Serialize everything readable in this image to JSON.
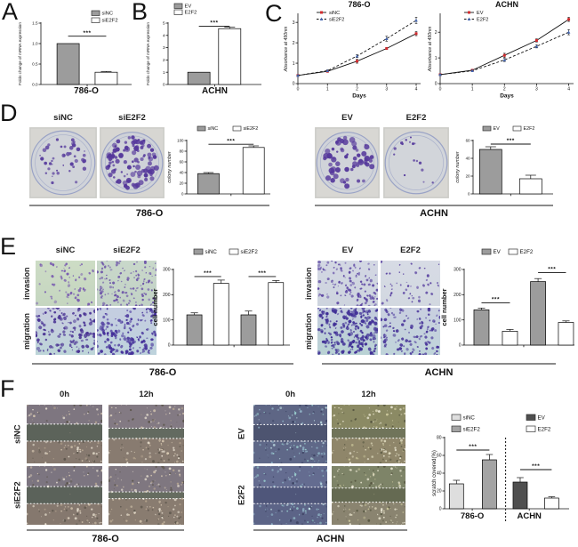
{
  "panels": {
    "A": {
      "letter": "A"
    },
    "B": {
      "letter": "B"
    },
    "C": {
      "letter": "C"
    },
    "D": {
      "letter": "D",
      "left": {
        "cols": [
          "siNC",
          "siE2F2"
        ],
        "cell_line": "786-O"
      },
      "right": {
        "cols": [
          "EV",
          "E2F2"
        ],
        "cell_line": "ACHN"
      }
    },
    "E": {
      "letter": "E",
      "row_labels": [
        "invasion",
        "migration"
      ],
      "left": {
        "cols": [
          "siNC",
          "siE2F2"
        ],
        "cell_line": "786-O"
      },
      "right": {
        "cols": [
          "EV",
          "E2F2"
        ],
        "cell_line": "ACHN"
      }
    },
    "F": {
      "letter": "F",
      "time_labels": [
        "0h",
        "12h"
      ],
      "left": {
        "rows": [
          "siNC",
          "siE2F2"
        ],
        "cell_line": "786-O"
      },
      "mid": {
        "rows": [
          "EV",
          "E2F2"
        ],
        "cell_line": "ACHN"
      }
    }
  },
  "colors": {
    "gray_bar": "#9c9c9c",
    "white_bar": "#ffffff",
    "light_gray_bar": "#dedede",
    "mid_gray_bar": "#a4a4a4",
    "dark_gray_bar": "#4f4f4f",
    "red_marker": "#d12b2e",
    "blue_marker": "#4466b0",
    "colony_purple": "#5a3f9e"
  },
  "chart_data": [
    {
      "id": "A",
      "type": "bar",
      "ylabel": "Folds change of mRNA expression",
      "xlabel": "786-O",
      "ylim": [
        0,
        1.5
      ],
      "yticks": [
        0,
        0.5,
        1,
        1.5
      ],
      "ytick_labels": [
        "0.0",
        "0.5",
        "1.0",
        "1.5"
      ],
      "bars": [
        {
          "label": "siNC",
          "value": 1.0,
          "err": 0,
          "fill": "#9c9c9c",
          "xc": 0.3
        },
        {
          "label": "siE2F2",
          "value": 0.3,
          "err": 0.02,
          "fill": "#ffffff",
          "xc": 0.72
        }
      ],
      "xtick_xc": [
        0.51
      ],
      "sig": [
        {
          "a": 0,
          "b": 1,
          "text": "***",
          "y": 1.18
        }
      ],
      "legend": {
        "items": [
          {
            "label": "siNC",
            "fill": "#9c9c9c"
          },
          {
            "label": "siE2F2",
            "fill": "#ffffff"
          }
        ]
      }
    },
    {
      "id": "B",
      "type": "bar",
      "ylabel": "Folds change of mRNA expression",
      "xlabel": "ACHN",
      "ylim": [
        0,
        5
      ],
      "yticks": [
        0,
        1,
        2,
        3,
        4,
        5
      ],
      "ytick_labels": [
        "0",
        "1",
        "2",
        "3",
        "4",
        "5"
      ],
      "bars": [
        {
          "label": "EV",
          "value": 1.0,
          "err": 0,
          "fill": "#9c9c9c",
          "xc": 0.33
        },
        {
          "label": "E2F2",
          "value": 4.55,
          "err": 0.12,
          "fill": "#ffffff",
          "xc": 0.66
        }
      ],
      "xtick_xc": [
        0.5
      ],
      "sig": [
        {
          "a": 0,
          "b": 1,
          "text": "***",
          "y": 4.75
        }
      ],
      "legend": {
        "items": [
          {
            "label": "EV",
            "fill": "#9c9c9c"
          },
          {
            "label": "E2F2",
            "fill": "#ffffff"
          }
        ]
      }
    },
    {
      "id": "C1",
      "type": "line",
      "title": "786-O",
      "ylabel": "Absorbance at 490nm",
      "xlabel": "Days",
      "xlim": [
        0,
        4.15
      ],
      "ylim": [
        0,
        3.4
      ],
      "xticks": [
        0,
        1,
        2,
        3,
        4
      ],
      "yticks": [
        0,
        1,
        2,
        3
      ],
      "series": [
        {
          "name": "siNC",
          "color": "#d12b2e",
          "dash": false,
          "values": [
            0.4,
            0.6,
            1.1,
            1.72,
            2.45
          ],
          "errs": [
            0.02,
            0.03,
            0.1,
            0.05,
            0.1
          ]
        },
        {
          "name": "siE2F2",
          "color": "#4466b0",
          "dash": true,
          "values": [
            0.4,
            0.63,
            1.35,
            2.2,
            3.1
          ],
          "errs": [
            0.02,
            0.04,
            0.07,
            0.12,
            0.15
          ]
        }
      ]
    },
    {
      "id": "C2",
      "type": "line",
      "title": "ACHN",
      "ylabel": "Absorbance at 490nm",
      "xlabel": "Days",
      "xlim": [
        0,
        4.15
      ],
      "ylim": [
        0,
        2.7
      ],
      "xticks": [
        0,
        1,
        2,
        3,
        4
      ],
      "yticks": [
        0,
        1,
        2
      ],
      "series": [
        {
          "name": "EV",
          "color": "#d12b2e",
          "dash": false,
          "values": [
            0.35,
            0.52,
            1.1,
            1.68,
            2.5
          ],
          "errs": [
            0.02,
            0.03,
            0.08,
            0.06,
            0.08
          ]
        },
        {
          "name": "E2F2",
          "color": "#4466b0",
          "dash": true,
          "values": [
            0.35,
            0.5,
            0.92,
            1.45,
            2.0
          ],
          "errs": [
            0.02,
            0.03,
            0.06,
            0.06,
            0.1
          ]
        }
      ]
    },
    {
      "id": "D1",
      "type": "bar",
      "ylabel": "colony number",
      "ylabel_italic": true,
      "ylim": [
        0,
        100
      ],
      "yticks": [
        0,
        20,
        40,
        60,
        80,
        100
      ],
      "ytick_labels": [
        "0",
        "20",
        "40",
        "60",
        "80",
        "100"
      ],
      "bars": [
        {
          "label": "siNC",
          "value": 38,
          "err": 2,
          "fill": "#9c9c9c",
          "xc": 0.26
        },
        {
          "label": "siE2F2",
          "value": 87,
          "err": 3,
          "fill": "#ffffff",
          "xc": 0.8
        }
      ],
      "xtick_xc": [
        0.53
      ],
      "sig": [
        {
          "a": 0,
          "b": 1,
          "text": "***",
          "y": 93
        }
      ],
      "legend": {
        "items": [
          {
            "label": "siNC",
            "fill": "#9c9c9c"
          },
          {
            "label": "siE2F2",
            "fill": "#ffffff"
          }
        ]
      }
    },
    {
      "id": "D2",
      "type": "bar",
      "ylabel": "colony number",
      "ylabel_italic": true,
      "ylim": [
        0,
        60
      ],
      "yticks": [
        0,
        20,
        40,
        60
      ],
      "ytick_labels": [
        "0",
        "20",
        "40",
        "60"
      ],
      "bars": [
        {
          "label": "EV",
          "value": 50,
          "err": 3,
          "fill": "#9c9c9c",
          "xc": 0.22
        },
        {
          "label": "E2F2",
          "value": 17,
          "err": 4,
          "fill": "#ffffff",
          "xc": 0.72
        }
      ],
      "xtick_xc": [
        0.47
      ],
      "sig": [
        {
          "a": 0,
          "b": 1,
          "text": "***",
          "y": 56
        }
      ],
      "legend": {
        "items": [
          {
            "label": "EV",
            "fill": "#9c9c9c"
          },
          {
            "label": "E2F2",
            "fill": "#ffffff"
          }
        ]
      }
    },
    {
      "id": "E1",
      "type": "bar",
      "ylabel": "cell number",
      "ylabel_bold": true,
      "ylim": [
        0,
        300
      ],
      "yticks": [
        0,
        100,
        200,
        300
      ],
      "ytick_labels": [
        "0",
        "100",
        "200",
        "300"
      ],
      "group_note": "left pair = invasion, right pair = migration",
      "bars": [
        {
          "label": "siNC",
          "value": 120,
          "err": 8,
          "fill": "#9c9c9c",
          "xc": 0.18
        },
        {
          "label": "siE2F2",
          "value": 245,
          "err": 13,
          "fill": "#ffffff",
          "xc": 0.41
        },
        {
          "label": "siNC",
          "value": 120,
          "err": 15,
          "fill": "#9c9c9c",
          "xc": 0.645
        },
        {
          "label": "siE2F2",
          "value": 248,
          "err": 8,
          "fill": "#ffffff",
          "xc": 0.88
        }
      ],
      "xtick_xc": [
        0.52
      ],
      "sig": [
        {
          "a": 0,
          "b": 1,
          "text": "***",
          "y": 272
        },
        {
          "a": 2,
          "b": 3,
          "text": "***",
          "y": 272
        }
      ],
      "legend": {
        "items": [
          {
            "label": "siNC",
            "fill": "#9c9c9c"
          },
          {
            "label": "siE2F2",
            "fill": "#ffffff"
          }
        ]
      }
    },
    {
      "id": "E2",
      "type": "bar",
      "ylabel": "cell number",
      "ylabel_bold": true,
      "ylim": [
        0,
        300
      ],
      "yticks": [
        0,
        100,
        200,
        300
      ],
      "ytick_labels": [
        "0",
        "100",
        "200",
        "300"
      ],
      "group_note": "left pair = invasion, right pair = migration",
      "bars": [
        {
          "label": "EV",
          "value": 140,
          "err": 7,
          "fill": "#9c9c9c",
          "xc": 0.157
        },
        {
          "label": "E2F2",
          "value": 55,
          "err": 7,
          "fill": "#ffffff",
          "xc": 0.415
        },
        {
          "label": "EV",
          "value": 252,
          "err": 12,
          "fill": "#9c9c9c",
          "xc": 0.67
        },
        {
          "label": "E2F2",
          "value": 90,
          "err": 6,
          "fill": "#ffffff",
          "xc": 0.923
        }
      ],
      "xtick_xc": [
        0.54
      ],
      "sig": [
        {
          "a": 0,
          "b": 1,
          "text": "***",
          "y": 168
        },
        {
          "a": 2,
          "b": 3,
          "text": "***",
          "y": 288
        }
      ],
      "legend": {
        "items": [
          {
            "label": "EV",
            "fill": "#9c9c9c"
          },
          {
            "label": "E2F2",
            "fill": "#ffffff"
          }
        ]
      }
    },
    {
      "id": "F",
      "type": "bar",
      "ylabel": "scratch covered(%)",
      "ylim": [
        0,
        80
      ],
      "yticks": [
        0,
        20,
        40,
        60,
        80
      ],
      "ytick_labels": [
        "0",
        "20",
        "40",
        "60",
        "80"
      ],
      "bars": [
        {
          "label": "siNC",
          "value": 28,
          "err": 4,
          "fill": "#dedede",
          "xc": 0.095
        },
        {
          "label": "siE2F2",
          "value": 55,
          "err": 6,
          "fill": "#a4a4a4",
          "xc": 0.36
        },
        {
          "label": "EV",
          "value": 30,
          "err": 5,
          "fill": "#4f4f4f",
          "xc": 0.607
        },
        {
          "label": "E2F2",
          "value": 12,
          "err": 1.5,
          "fill": "#ffffff",
          "xc": 0.86
        }
      ],
      "xtick_xc": [
        0.222,
        0.68
      ],
      "divider_xc": 0.49,
      "group_labels": [
        {
          "text": "786-O",
          "xc": 0.222
        },
        {
          "text": "ACHN",
          "xc": 0.68
        }
      ],
      "sig": [
        {
          "a": 0,
          "b": 1,
          "text": "***",
          "y": 66
        },
        {
          "a": 2,
          "b": 3,
          "text": "***",
          "y": 44
        }
      ],
      "legend": {
        "items": [
          {
            "label": "siNC",
            "fill": "#dedede"
          },
          {
            "label": "siE2F2",
            "fill": "#a4a4a4"
          },
          {
            "label": "EV",
            "fill": "#4f4f4f"
          },
          {
            "label": "E2F2",
            "fill": "#ffffff"
          }
        ]
      }
    }
  ],
  "micrographs": {
    "d_sinc": {
      "kind": "well",
      "bg": "#d7d6d2",
      "dish": "#d0d3d9",
      "rim": "#9aa3c6",
      "dot": "#5a3f9e",
      "n": 44,
      "rmin": 0.8,
      "rmax": 2.3,
      "seed": 11
    },
    "d_sie2f2": {
      "kind": "well",
      "bg": "#d7d6d2",
      "dish": "#cfd2d8",
      "rim": "#9aa3c6",
      "dot": "#55389b",
      "n": 100,
      "rmin": 1.0,
      "rmax": 3.2,
      "seed": 22
    },
    "d_ev": {
      "kind": "well",
      "bg": "#d8d7d3",
      "dish": "#d0d3d9",
      "rim": "#9aa3c6",
      "dot": "#55389b",
      "n": 60,
      "rmin": 1.1,
      "rmax": 3.4,
      "seed": 33
    },
    "d_e2f2": {
      "kind": "well",
      "bg": "#d8d7d3",
      "dish": "#d2d5da",
      "rim": "#9aa3c6",
      "dot": "#5a3f9e",
      "n": 17,
      "rmin": 0.7,
      "rmax": 1.7,
      "seed": 44
    },
    "e_inv_sinc": {
      "kind": "cells",
      "bg": "#cddcc5",
      "bg2": "#c5d6c0",
      "dot": "#7a5db0",
      "n": 60,
      "rmin": 0.7,
      "rmax": 1.7,
      "seed": 51
    },
    "e_inv_sie2f2": {
      "kind": "cells",
      "bg": "#c9d8ca",
      "bg2": "#c2d2c6",
      "dot": "#6b51a8",
      "n": 135,
      "rmin": 0.7,
      "rmax": 1.6,
      "seed": 52
    },
    "e_mig_sinc": {
      "kind": "cells",
      "bg": "#c9cce0",
      "bg2": "#bdd5d8",
      "dot": "#4a3394",
      "n": 135,
      "rmin": 0.8,
      "rmax": 2.0,
      "seed": 53
    },
    "e_mig_sie2f2": {
      "kind": "cells",
      "bg": "#c5cde1",
      "bg2": "#bed3dc",
      "dot": "#45309a",
      "n": 160,
      "rmin": 0.8,
      "rmax": 2.0,
      "seed": 54
    },
    "e_inv_ev": {
      "kind": "cells",
      "bg": "#d3d7e3",
      "bg2": "#cdd4de",
      "dot": "#5b44a2",
      "n": 120,
      "rmin": 0.7,
      "rmax": 1.7,
      "seed": 55
    },
    "e_inv_e2f2": {
      "kind": "cells",
      "bg": "#d7dbe5",
      "bg2": "#d2d8e0",
      "dot": "#5b44a2",
      "n": 46,
      "rmin": 0.7,
      "rmax": 1.6,
      "seed": 56
    },
    "e_mig_ev": {
      "kind": "cells",
      "bg": "#c3cbdd",
      "bg2": "#b9d2d4",
      "dot": "#402f96",
      "n": 240,
      "rmin": 0.8,
      "rmax": 2.1,
      "seed": 57
    },
    "e_mig_e2f2": {
      "kind": "cells",
      "bg": "#c9cfe0",
      "bg2": "#c0d4da",
      "dot": "#473399",
      "n": 115,
      "rmin": 0.8,
      "rmax": 1.9,
      "seed": 58
    },
    "f1_sinc_0": {
      "kind": "scratch",
      "top": "#7e7680",
      "bot": "#86796f",
      "band": "#5c635a",
      "edges": [
        0.33,
        0.62
      ],
      "spk": [
        "#d9cab2",
        "#b9a892",
        "#5c564c",
        "#ece4d4"
      ],
      "n": 160,
      "seed": 61
    },
    "f1_sinc_12": {
      "kind": "scratch",
      "top": "#837a83",
      "bot": "#887b70",
      "band": "#636a60",
      "edges": [
        0.4,
        0.575
      ],
      "spk": [
        "#d9cab2",
        "#baa992",
        "#5c564c",
        "#ece4d4"
      ],
      "n": 160,
      "seed": 62
    },
    "f1_sie_0": {
      "kind": "scratch",
      "top": "#7c7580",
      "bot": "#85786e",
      "band": "#5b625a",
      "edges": [
        0.35,
        0.64
      ],
      "spk": [
        "#d9cab2",
        "#b9a892",
        "#5c564c",
        "#ece4d4"
      ],
      "n": 160,
      "seed": 63
    },
    "f1_sie_12": {
      "kind": "scratch",
      "top": "#7f7780",
      "bot": "#897c70",
      "band": "#666c60",
      "edges": [
        0.44,
        0.555
      ],
      "spk": [
        "#d9cab2",
        "#baa992",
        "#5c564c",
        "#ece4d4"
      ],
      "n": 160,
      "seed": 64
    },
    "f2_ev_0": {
      "kind": "scratch",
      "top": "#5e6685",
      "bot": "#5f6888",
      "band": "#4d5470",
      "edges": [
        0.34,
        0.62
      ],
      "spk": [
        "#9fd8d4",
        "#cdeef0",
        "#3c4262",
        "#8fb2c6"
      ],
      "n": 180,
      "seed": 65
    },
    "f2_ev_12": {
      "kind": "scratch",
      "top": "#8b8a64",
      "bot": "#8f866a",
      "band": "#70745a",
      "edges": [
        0.4,
        0.57
      ],
      "spk": [
        "#e2ddc0",
        "#ccc89c",
        "#565640",
        "#f0ecd8"
      ],
      "n": 180,
      "seed": 66
    },
    "f2_e2f2_0": {
      "kind": "scratch",
      "top": "#646c90",
      "bot": "#5c6487",
      "band": "#4f567a",
      "edges": [
        0.36,
        0.64
      ],
      "spk": [
        "#9fd8d4",
        "#cdeef0",
        "#3c4262",
        "#8fb2c6"
      ],
      "n": 180,
      "seed": 67
    },
    "f2_e2f2_12": {
      "kind": "scratch",
      "top": "#7e8468",
      "bot": "#8a8470",
      "band": "#656a52",
      "edges": [
        0.375,
        0.615
      ],
      "spk": [
        "#e2ddc0",
        "#ccc89c",
        "#565640",
        "#f0ecd8"
      ],
      "n": 180,
      "seed": 68
    }
  }
}
